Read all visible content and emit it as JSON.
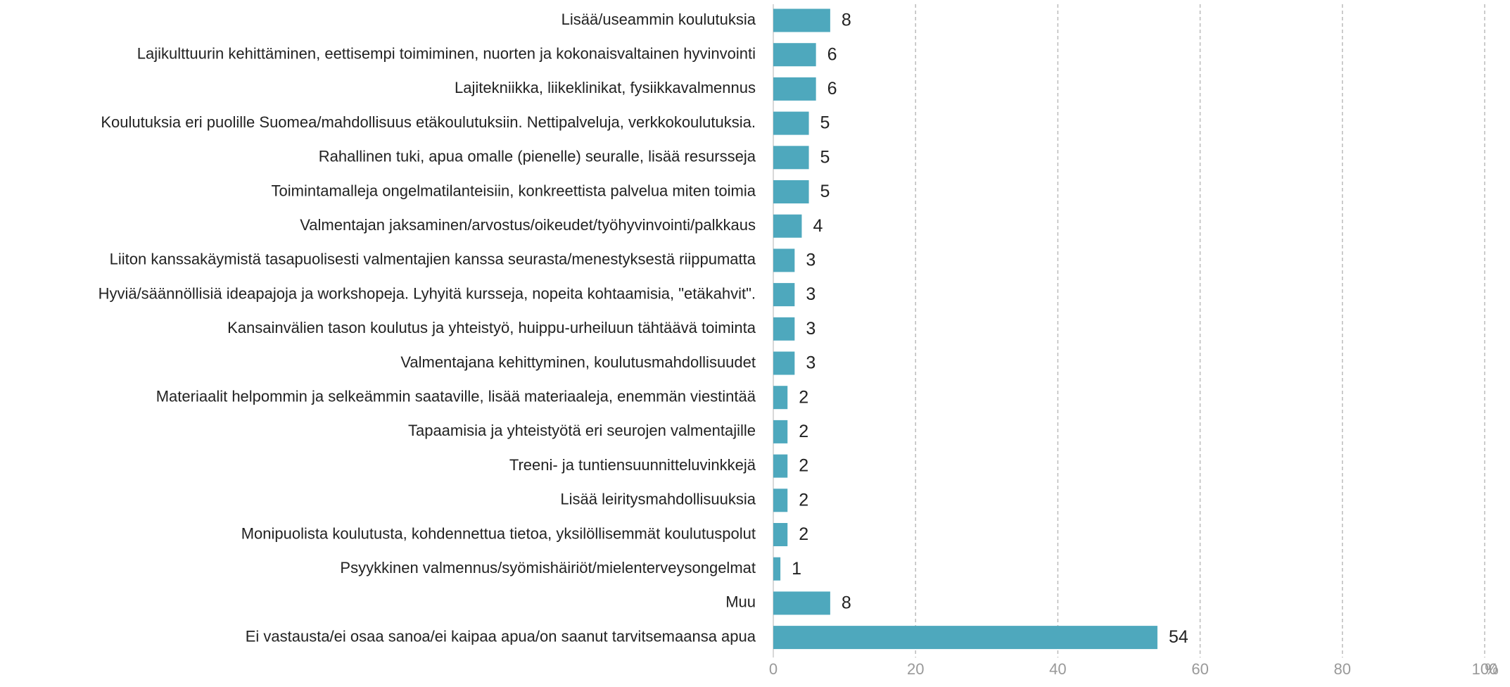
{
  "chart_data": {
    "type": "barh",
    "categories": [
      "Lisää/useammin koulutuksia",
      "Lajikulttuurin kehittäminen, eettisempi toimiminen, nuorten ja kokonaisvaltainen hyvinvointi",
      "Lajitekniikka, liikeklinikat, fysiikkavalmennus",
      "Koulutuksia eri puolille Suomea/mahdollisuus etäkoulutuksiin. Nettipalveluja, verkkokoulutuksia.",
      "Rahallinen tuki, apua omalle (pienelle) seuralle, lisää resursseja",
      "Toimintamalleja ongelmatilanteisiin, konkreettista palvelua miten toimia",
      "Valmentajan jaksaminen/arvostus/oikeudet/työhyvinvointi/palkkaus",
      "Liiton kanssakäymistä tasapuolisesti valmentajien kanssa seurasta/menestyksestä riippumatta",
      "Hyviä/säännöllisiä ideapajoja ja workshopeja. Lyhyitä kursseja, nopeita kohtaamisia, \"etäkahvit\".",
      "Kansainvälien tason koulutus ja yhteistyö, huippu-urheiluun tähtäävä toiminta",
      "Valmentajana kehittyminen, koulutusmahdollisuudet",
      "Materiaalit helpommin ja selkeämmin saataville, lisää materiaaleja, enemmän viestintää",
      "Tapaamisia ja yhteistyötä eri seurojen valmentajille",
      "Treeni- ja tuntiensuunnitteluvinkkejä",
      "Lisää leiritysmahdollisuuksia",
      "Monipuolista koulutusta, kohdennettua tietoa, yksilöllisemmät koulutuspolut",
      "Psyykkinen valmennus/syömishäiriöt/mielenterveysongelmat",
      "Muu",
      "Ei vastausta/ei osaa sanoa/ei kaipaa apua/on saanut tarvitsemaansa apua"
    ],
    "values": [
      8,
      6,
      6,
      5,
      5,
      5,
      4,
      3,
      3,
      3,
      3,
      2,
      2,
      2,
      2,
      2,
      1,
      8,
      54
    ],
    "color": "#4ea8bd",
    "xlim": [
      0,
      100
    ],
    "xticks": [
      0,
      20,
      40,
      60,
      80,
      100
    ],
    "xlabel": "%",
    "grid": true
  }
}
